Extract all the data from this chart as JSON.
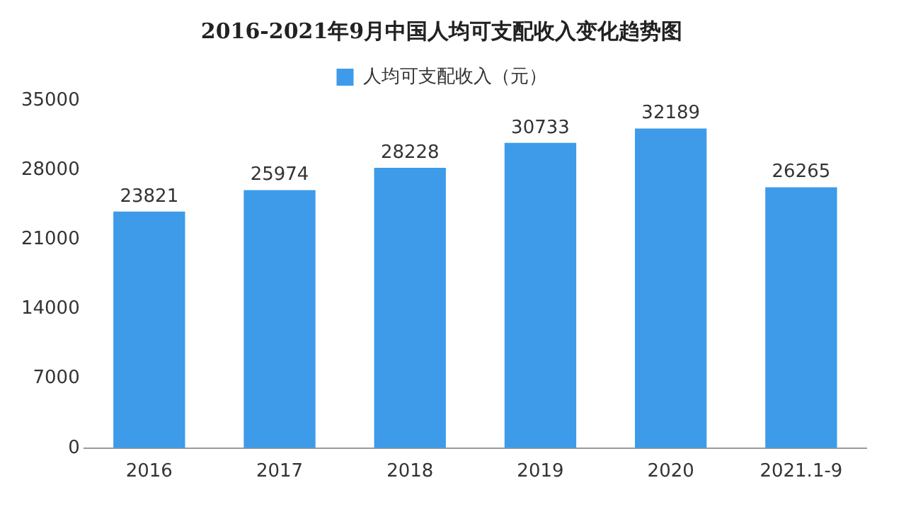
{
  "chart_data": {
    "type": "bar",
    "title": "2016-2021年9月中国人均可支配收入变化趋势图",
    "categories": [
      "2016",
      "2017",
      "2018",
      "2019",
      "2020",
      "2021.1-9"
    ],
    "series": [
      {
        "name": "人均可支配收入（元）",
        "color": "#3d9be9",
        "values": [
          23821,
          25974,
          28228,
          30733,
          32189,
          26265
        ]
      }
    ],
    "ylim": [
      0,
      35000
    ],
    "yticks": [
      0,
      7000,
      14000,
      21000,
      28000,
      35000
    ],
    "grid": false,
    "legend": "top",
    "data_labels": true
  }
}
